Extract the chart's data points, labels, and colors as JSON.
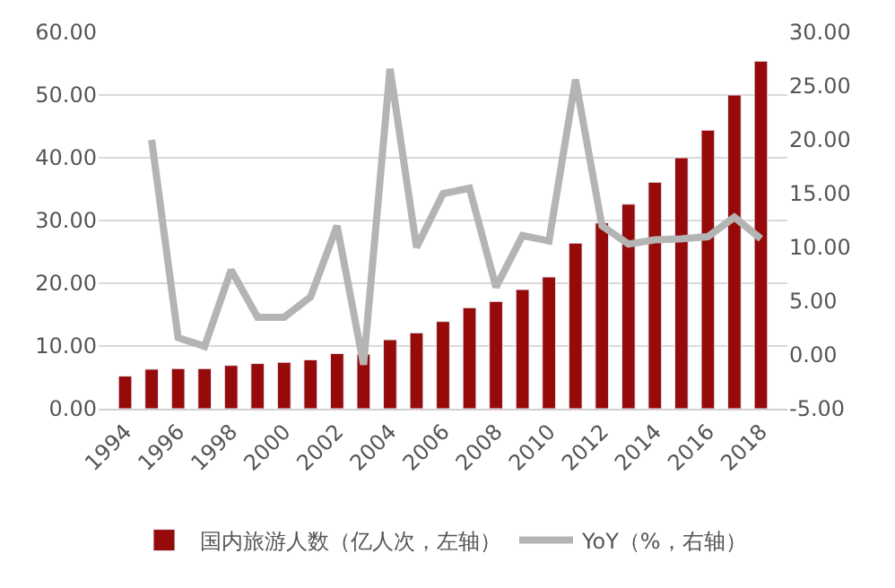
{
  "chart_data": {
    "type": "bar",
    "x": [
      1994,
      1995,
      1996,
      1997,
      1998,
      1999,
      2000,
      2001,
      2002,
      2003,
      2004,
      2005,
      2006,
      2007,
      2008,
      2009,
      2010,
      2011,
      2012,
      2013,
      2014,
      2015,
      2016,
      2017,
      2018
    ],
    "series": [
      {
        "name": "国内旅游人数（亿人次，左轴）",
        "color": "#960a0a",
        "values": [
          5.2,
          6.3,
          6.4,
          6.4,
          6.9,
          7.2,
          7.4,
          7.8,
          8.8,
          8.7,
          11.0,
          12.1,
          13.9,
          16.1,
          17.1,
          19.0,
          21.0,
          26.4,
          29.6,
          32.6,
          36.1,
          40.0,
          44.4,
          50.0,
          55.4
        ]
      },
      {
        "name": "YoY（%，右轴）",
        "type": "line",
        "axis": "y2",
        "color": "#b4b4b4",
        "values": [
          null,
          20.0,
          1.6,
          0.8,
          7.9,
          3.5,
          3.5,
          5.4,
          12.0,
          -0.9,
          26.6,
          10.0,
          15.0,
          15.5,
          6.3,
          11.1,
          10.6,
          25.6,
          12.0,
          10.3,
          10.7,
          10.8,
          11.0,
          12.8,
          10.8
        ]
      }
    ],
    "xlim": [
      1993,
      2019
    ],
    "xticks": [
      1994,
      1996,
      1998,
      2000,
      2002,
      2004,
      2006,
      2008,
      2010,
      2012,
      2014,
      2016,
      2018
    ],
    "ylim": [
      0,
      60
    ],
    "yticks": [
      {
        "value": 0,
        "label": "0.00"
      },
      {
        "value": 10,
        "label": "10.00"
      },
      {
        "value": 20,
        "label": "20.00"
      },
      {
        "value": 30,
        "label": "30.00"
      },
      {
        "value": 40,
        "label": "40.00"
      },
      {
        "value": 50,
        "label": "50.00"
      },
      {
        "value": 60,
        "label": "60.00"
      }
    ],
    "y2lim": [
      -5,
      30
    ],
    "y2ticks": [
      {
        "value": -5,
        "label": "-5.00"
      },
      {
        "value": 0,
        "label": "0.00"
      },
      {
        "value": 5,
        "label": "5.00"
      },
      {
        "value": 10,
        "label": "10.00"
      },
      {
        "value": 15,
        "label": "15.00"
      },
      {
        "value": 20,
        "label": "20.00"
      },
      {
        "value": 25,
        "label": "25.00"
      },
      {
        "value": 30,
        "label": "30.00"
      }
    ],
    "grid": "y",
    "legend": "bottom"
  }
}
